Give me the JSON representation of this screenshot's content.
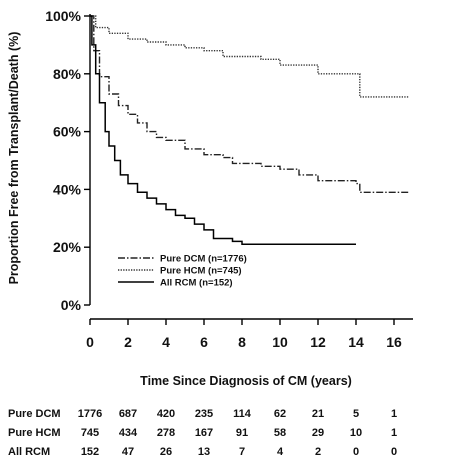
{
  "chart_data": {
    "type": "line",
    "title": "",
    "xlabel": "Time Since Diagnosis of CM (years)",
    "ylabel": "Proportion Free from Transplant/Death (%)",
    "xlim": [
      0,
      17
    ],
    "ylim": [
      0,
      100
    ],
    "x_ticks": [
      0,
      2,
      4,
      6,
      8,
      10,
      12,
      14,
      16
    ],
    "y_ticks": [
      0,
      20,
      40,
      60,
      80,
      100
    ],
    "y_tick_labels": [
      "0%",
      "20%",
      "40%",
      "60%",
      "80%",
      "100%"
    ],
    "grid": false,
    "legend_position": "lower-left",
    "series": [
      {
        "name": "Pure DCM (n=1776)",
        "style": "dash-dot",
        "color": "#222222",
        "points": [
          [
            0,
            100
          ],
          [
            0.2,
            88
          ],
          [
            0.5,
            79
          ],
          [
            1,
            73
          ],
          [
            1.5,
            69
          ],
          [
            2,
            66
          ],
          [
            2.5,
            63
          ],
          [
            3,
            60
          ],
          [
            3.5,
            58
          ],
          [
            4,
            57
          ],
          [
            5,
            54
          ],
          [
            6,
            52
          ],
          [
            7,
            51
          ],
          [
            7.5,
            49
          ],
          [
            8,
            49
          ],
          [
            9,
            48
          ],
          [
            10,
            47
          ],
          [
            11,
            45
          ],
          [
            12,
            43
          ],
          [
            13,
            43
          ],
          [
            13.5,
            43
          ],
          [
            14,
            42
          ],
          [
            14.2,
            39
          ],
          [
            15,
            39
          ],
          [
            16,
            39
          ],
          [
            16.8,
            39
          ]
        ]
      },
      {
        "name": "Pure HCM (n=745)",
        "style": "dotted",
        "color": "#333333",
        "points": [
          [
            0,
            100
          ],
          [
            0.3,
            96
          ],
          [
            1,
            94
          ],
          [
            2,
            92
          ],
          [
            3,
            91
          ],
          [
            4,
            90
          ],
          [
            5,
            89
          ],
          [
            6,
            88
          ],
          [
            7,
            86
          ],
          [
            8,
            86
          ],
          [
            9,
            85
          ],
          [
            10,
            83
          ],
          [
            11,
            83
          ],
          [
            12,
            80
          ],
          [
            13,
            80
          ],
          [
            14,
            80
          ],
          [
            14.2,
            72
          ],
          [
            15,
            72
          ],
          [
            16,
            72
          ],
          [
            16.8,
            72
          ]
        ]
      },
      {
        "name": "All RCM (n=152)",
        "style": "solid",
        "color": "#000000",
        "points": [
          [
            0,
            100
          ],
          [
            0.1,
            90
          ],
          [
            0.3,
            80
          ],
          [
            0.5,
            70
          ],
          [
            0.8,
            60
          ],
          [
            1,
            55
          ],
          [
            1.3,
            50
          ],
          [
            1.6,
            45
          ],
          [
            2,
            42
          ],
          [
            2.5,
            39
          ],
          [
            3,
            37
          ],
          [
            3.5,
            35
          ],
          [
            4,
            33
          ],
          [
            4.5,
            31
          ],
          [
            5,
            30
          ],
          [
            5.5,
            28
          ],
          [
            6,
            26
          ],
          [
            6.5,
            23
          ],
          [
            7,
            23
          ],
          [
            7.5,
            22
          ],
          [
            8,
            21
          ],
          [
            10,
            21
          ],
          [
            12,
            21
          ],
          [
            14,
            21
          ]
        ]
      }
    ],
    "risk_table": {
      "timepoints": [
        0,
        2,
        4,
        6,
        8,
        10,
        12,
        14,
        16
      ],
      "rows": [
        {
          "label": "Pure DCM",
          "values": [
            "1776",
            "687",
            "420",
            "235",
            "114",
            "62",
            "21",
            "5",
            "1"
          ]
        },
        {
          "label": "Pure HCM",
          "values": [
            "745",
            "434",
            "278",
            "167",
            "91",
            "58",
            "29",
            "10",
            "1"
          ]
        },
        {
          "label": "All RCM",
          "values": [
            "152",
            "47",
            "26",
            "13",
            "7",
            "4",
            "2",
            "0",
            "0"
          ]
        }
      ]
    }
  }
}
